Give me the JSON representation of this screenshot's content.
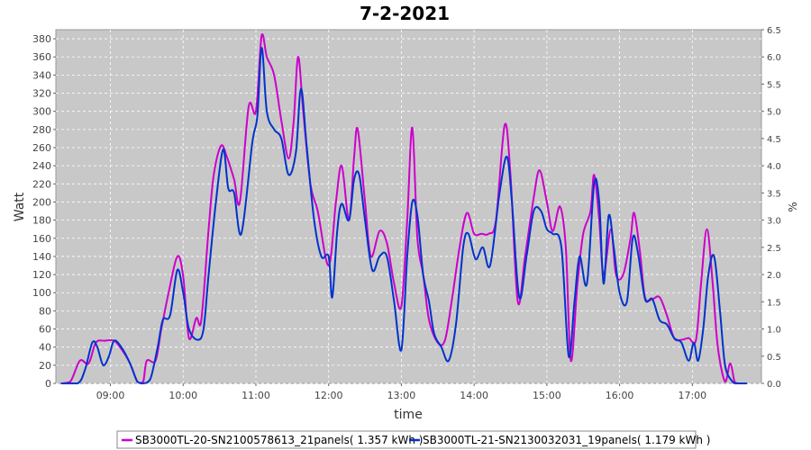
{
  "chart_data": {
    "type": "line",
    "title": "7-2-2021",
    "xlabel": "time",
    "ylabel": "Watt",
    "y2label": "%",
    "xlim": [
      8.25,
      17.95
    ],
    "ylim": [
      0,
      390
    ],
    "y2lim": [
      0,
      6.5
    ],
    "x_ticks": [
      {
        "label": "09:00",
        "value": 9
      },
      {
        "label": "10:00",
        "value": 10
      },
      {
        "label": "11:00",
        "value": 11
      },
      {
        "label": "12:00",
        "value": 12
      },
      {
        "label": "13:00",
        "value": 13
      },
      {
        "label": "14:00",
        "value": 14
      },
      {
        "label": "15:00",
        "value": 15
      },
      {
        "label": "16:00",
        "value": 16
      },
      {
        "label": "17:00",
        "value": 17
      }
    ],
    "y_ticks": [
      0,
      20,
      40,
      60,
      80,
      100,
      120,
      140,
      160,
      180,
      200,
      220,
      240,
      260,
      280,
      300,
      320,
      340,
      360,
      380
    ],
    "y2_ticks": [
      "0.0",
      "0.5",
      "1.0",
      "1.5",
      "2.0",
      "2.5",
      "3.0",
      "3.5",
      "4.0",
      "4.5",
      "5.0",
      "5.5",
      "6.0",
      "6.5"
    ],
    "grid": true,
    "legend_position": "bottom",
    "background": "#c8c8c8",
    "series": [
      {
        "name": "SB3000TL-20-SN2100578613_21panels( 1.357 kWh )",
        "color": "#cc00cc",
        "points": [
          [
            8.32,
            0
          ],
          [
            8.45,
            2
          ],
          [
            8.58,
            25
          ],
          [
            8.7,
            22
          ],
          [
            8.8,
            45
          ],
          [
            8.92,
            47
          ],
          [
            9.05,
            47
          ],
          [
            9.15,
            38
          ],
          [
            9.27,
            22
          ],
          [
            9.37,
            2
          ],
          [
            9.45,
            2
          ],
          [
            9.5,
            25
          ],
          [
            9.62,
            25
          ],
          [
            9.7,
            60
          ],
          [
            9.8,
            100
          ],
          [
            9.92,
            140
          ],
          [
            10.0,
            118
          ],
          [
            10.08,
            50
          ],
          [
            10.18,
            72
          ],
          [
            10.25,
            70
          ],
          [
            10.35,
            170
          ],
          [
            10.42,
            230
          ],
          [
            10.52,
            262
          ],
          [
            10.6,
            250
          ],
          [
            10.7,
            225
          ],
          [
            10.78,
            200
          ],
          [
            10.9,
            305
          ],
          [
            11.0,
            300
          ],
          [
            11.08,
            384
          ],
          [
            11.15,
            360
          ],
          [
            11.25,
            340
          ],
          [
            11.35,
            290
          ],
          [
            11.45,
            248
          ],
          [
            11.52,
            290
          ],
          [
            11.58,
            360
          ],
          [
            11.65,
            300
          ],
          [
            11.75,
            220
          ],
          [
            11.85,
            190
          ],
          [
            12.0,
            130
          ],
          [
            12.1,
            200
          ],
          [
            12.18,
            240
          ],
          [
            12.28,
            180
          ],
          [
            12.35,
            250
          ],
          [
            12.4,
            280
          ],
          [
            12.5,
            200
          ],
          [
            12.58,
            140
          ],
          [
            12.7,
            168
          ],
          [
            12.8,
            155
          ],
          [
            12.9,
            110
          ],
          [
            13.0,
            85
          ],
          [
            13.08,
            180
          ],
          [
            13.15,
            282
          ],
          [
            13.22,
            160
          ],
          [
            13.3,
            120
          ],
          [
            13.38,
            70
          ],
          [
            13.5,
            45
          ],
          [
            13.6,
            48
          ],
          [
            13.7,
            95
          ],
          [
            13.8,
            150
          ],
          [
            13.9,
            188
          ],
          [
            14.0,
            165
          ],
          [
            14.1,
            165
          ],
          [
            14.2,
            165
          ],
          [
            14.3,
            180
          ],
          [
            14.42,
            285
          ],
          [
            14.5,
            230
          ],
          [
            14.6,
            90
          ],
          [
            14.7,
            140
          ],
          [
            14.82,
            205
          ],
          [
            14.9,
            235
          ],
          [
            15.0,
            200
          ],
          [
            15.08,
            168
          ],
          [
            15.18,
            195
          ],
          [
            15.26,
            150
          ],
          [
            15.33,
            25
          ],
          [
            15.42,
            110
          ],
          [
            15.5,
            165
          ],
          [
            15.6,
            190
          ],
          [
            15.65,
            230
          ],
          [
            15.72,
            180
          ],
          [
            15.78,
            120
          ],
          [
            15.88,
            170
          ],
          [
            15.95,
            120
          ],
          [
            16.05,
            120
          ],
          [
            16.15,
            160
          ],
          [
            16.2,
            188
          ],
          [
            16.28,
            145
          ],
          [
            16.35,
            95
          ],
          [
            16.45,
            93
          ],
          [
            16.55,
            95
          ],
          [
            16.65,
            75
          ],
          [
            16.75,
            50
          ],
          [
            16.85,
            48
          ],
          [
            16.95,
            50
          ],
          [
            17.05,
            48
          ],
          [
            17.12,
            110
          ],
          [
            17.2,
            170
          ],
          [
            17.28,
            110
          ],
          [
            17.35,
            40
          ],
          [
            17.45,
            2
          ],
          [
            17.52,
            22
          ],
          [
            17.58,
            2
          ],
          [
            17.62,
            0
          ]
        ]
      },
      {
        "name": "SB3000TL-21-SN2130032031_19panels( 1.179 kWh )",
        "color": "#0033cc",
        "points": [
          [
            8.32,
            0
          ],
          [
            8.55,
            0
          ],
          [
            8.65,
            15
          ],
          [
            8.75,
            45
          ],
          [
            8.82,
            40
          ],
          [
            8.9,
            20
          ],
          [
            8.98,
            30
          ],
          [
            9.05,
            47
          ],
          [
            9.15,
            40
          ],
          [
            9.27,
            22
          ],
          [
            9.37,
            2
          ],
          [
            9.45,
            0
          ],
          [
            9.55,
            5
          ],
          [
            9.65,
            40
          ],
          [
            9.72,
            70
          ],
          [
            9.82,
            75
          ],
          [
            9.92,
            125
          ],
          [
            10.0,
            100
          ],
          [
            10.08,
            60
          ],
          [
            10.2,
            48
          ],
          [
            10.28,
            60
          ],
          [
            10.35,
            120
          ],
          [
            10.45,
            200
          ],
          [
            10.55,
            258
          ],
          [
            10.62,
            215
          ],
          [
            10.7,
            210
          ],
          [
            10.8,
            165
          ],
          [
            10.95,
            265
          ],
          [
            11.02,
            295
          ],
          [
            11.08,
            370
          ],
          [
            11.15,
            300
          ],
          [
            11.25,
            280
          ],
          [
            11.35,
            270
          ],
          [
            11.45,
            230
          ],
          [
            11.55,
            255
          ],
          [
            11.62,
            325
          ],
          [
            11.7,
            260
          ],
          [
            11.8,
            180
          ],
          [
            11.9,
            140
          ],
          [
            12.0,
            140
          ],
          [
            12.05,
            95
          ],
          [
            12.12,
            170
          ],
          [
            12.18,
            198
          ],
          [
            12.28,
            180
          ],
          [
            12.35,
            225
          ],
          [
            12.42,
            230
          ],
          [
            12.5,
            180
          ],
          [
            12.6,
            125
          ],
          [
            12.7,
            140
          ],
          [
            12.8,
            140
          ],
          [
            12.9,
            90
          ],
          [
            13.0,
            37
          ],
          [
            13.08,
            140
          ],
          [
            13.15,
            200
          ],
          [
            13.22,
            185
          ],
          [
            13.3,
            120
          ],
          [
            13.38,
            90
          ],
          [
            13.45,
            55
          ],
          [
            13.55,
            40
          ],
          [
            13.65,
            25
          ],
          [
            13.75,
            65
          ],
          [
            13.85,
            150
          ],
          [
            13.92,
            165
          ],
          [
            14.02,
            137
          ],
          [
            14.12,
            150
          ],
          [
            14.22,
            130
          ],
          [
            14.35,
            210
          ],
          [
            14.45,
            250
          ],
          [
            14.52,
            200
          ],
          [
            14.62,
            95
          ],
          [
            14.72,
            140
          ],
          [
            14.82,
            190
          ],
          [
            14.92,
            190
          ],
          [
            15.0,
            170
          ],
          [
            15.08,
            165
          ],
          [
            15.2,
            150
          ],
          [
            15.3,
            30
          ],
          [
            15.38,
            90
          ],
          [
            15.45,
            140
          ],
          [
            15.55,
            110
          ],
          [
            15.65,
            220
          ],
          [
            15.72,
            200
          ],
          [
            15.78,
            110
          ],
          [
            15.85,
            185
          ],
          [
            15.92,
            150
          ],
          [
            16.0,
            100
          ],
          [
            16.1,
            90
          ],
          [
            16.18,
            160
          ],
          [
            16.25,
            145
          ],
          [
            16.35,
            93
          ],
          [
            16.45,
            93
          ],
          [
            16.55,
            70
          ],
          [
            16.65,
            65
          ],
          [
            16.75,
            50
          ],
          [
            16.85,
            45
          ],
          [
            16.95,
            25
          ],
          [
            17.02,
            45
          ],
          [
            17.08,
            25
          ],
          [
            17.15,
            60
          ],
          [
            17.22,
            120
          ],
          [
            17.3,
            140
          ],
          [
            17.38,
            80
          ],
          [
            17.45,
            20
          ],
          [
            17.55,
            2
          ],
          [
            17.6,
            0
          ],
          [
            17.75,
            0
          ]
        ]
      }
    ]
  }
}
